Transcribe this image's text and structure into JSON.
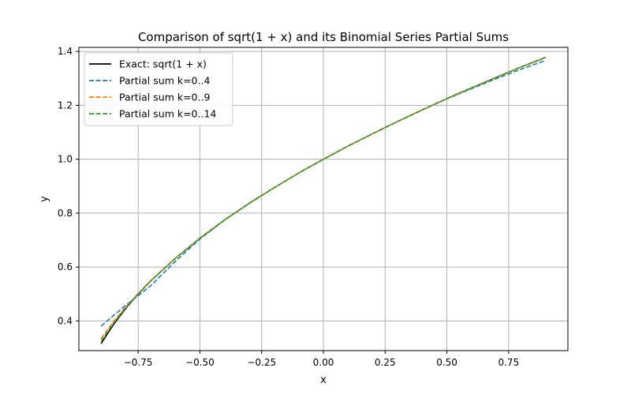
{
  "chart_data": {
    "type": "line",
    "title": "Comparison of sqrt(1 + x) and its Binomial Series Partial Sums",
    "xlabel": "x",
    "ylabel": "y",
    "xlim": [
      -0.99,
      0.99
    ],
    "ylim": [
      0.29,
      1.415
    ],
    "xticks": [
      -0.75,
      -0.5,
      -0.25,
      0.0,
      0.25,
      0.5,
      0.75
    ],
    "xtick_labels": [
      "−0.75",
      "−0.50",
      "−0.25",
      "0.00",
      "0.25",
      "0.50",
      "0.75"
    ],
    "yticks": [
      0.4,
      0.6,
      0.8,
      1.0,
      1.2,
      1.4
    ],
    "ytick_labels": [
      "0.4",
      "0.6",
      "0.8",
      "1.0",
      "1.2",
      "1.4"
    ],
    "grid": true,
    "legend_position": "upper-left",
    "x_range": [
      -0.9,
      0.9
    ],
    "series": [
      {
        "name": "Exact: sqrt(1 + x)",
        "color": "#000000",
        "style": "solid",
        "x": [
          -0.9,
          -0.85,
          -0.8,
          -0.75,
          -0.7,
          -0.6,
          -0.5,
          -0.4,
          -0.3,
          -0.2,
          -0.1,
          0.0,
          0.1,
          0.2,
          0.3,
          0.4,
          0.5,
          0.6,
          0.7,
          0.8,
          0.9
        ],
        "y": [
          0.316,
          0.387,
          0.447,
          0.5,
          0.548,
          0.632,
          0.707,
          0.775,
          0.837,
          0.894,
          0.949,
          1.0,
          1.049,
          1.095,
          1.14,
          1.183,
          1.225,
          1.265,
          1.304,
          1.342,
          1.378
        ]
      },
      {
        "name": "Partial sum k=0..4",
        "color": "#1f77b4",
        "style": "dashed",
        "x": [
          -0.9,
          -0.85,
          -0.8,
          -0.75,
          -0.7,
          -0.6,
          -0.5,
          -0.4,
          -0.3,
          -0.2,
          -0.1,
          0.0,
          0.1,
          0.2,
          0.3,
          0.4,
          0.5,
          0.6,
          0.7,
          0.8,
          0.9
        ],
        "y": [
          0.381,
          0.42,
          0.458,
          0.494,
          0.53,
          0.621,
          0.704,
          0.774,
          0.836,
          0.894,
          0.949,
          1.0,
          1.049,
          1.095,
          1.14,
          1.183,
          1.224,
          1.262,
          1.299,
          1.334,
          1.367
        ]
      },
      {
        "name": "Partial sum k=0..9",
        "color": "#ff7f0e",
        "style": "dashed",
        "x": [
          -0.9,
          -0.85,
          -0.8,
          -0.75,
          -0.7,
          -0.6,
          -0.5,
          -0.4,
          -0.3,
          -0.2,
          -0.1,
          0.0,
          0.1,
          0.2,
          0.3,
          0.4,
          0.5,
          0.6,
          0.7,
          0.8,
          0.9
        ],
        "y": [
          0.335,
          0.398,
          0.452,
          0.502,
          0.549,
          0.632,
          0.707,
          0.775,
          0.837,
          0.894,
          0.949,
          1.0,
          1.049,
          1.095,
          1.14,
          1.183,
          1.225,
          1.265,
          1.304,
          1.342,
          1.379
        ]
      },
      {
        "name": "Partial sum k=0..14",
        "color": "#2ca02c",
        "style": "dashed",
        "x": [
          -0.9,
          -0.85,
          -0.8,
          -0.75,
          -0.7,
          -0.6,
          -0.5,
          -0.4,
          -0.3,
          -0.2,
          -0.1,
          0.0,
          0.1,
          0.2,
          0.3,
          0.4,
          0.5,
          0.6,
          0.7,
          0.8,
          0.9
        ],
        "y": [
          0.326,
          0.392,
          0.449,
          0.5,
          0.548,
          0.632,
          0.707,
          0.775,
          0.837,
          0.894,
          0.949,
          1.0,
          1.049,
          1.095,
          1.14,
          1.183,
          1.225,
          1.265,
          1.304,
          1.342,
          1.378
        ]
      }
    ]
  }
}
